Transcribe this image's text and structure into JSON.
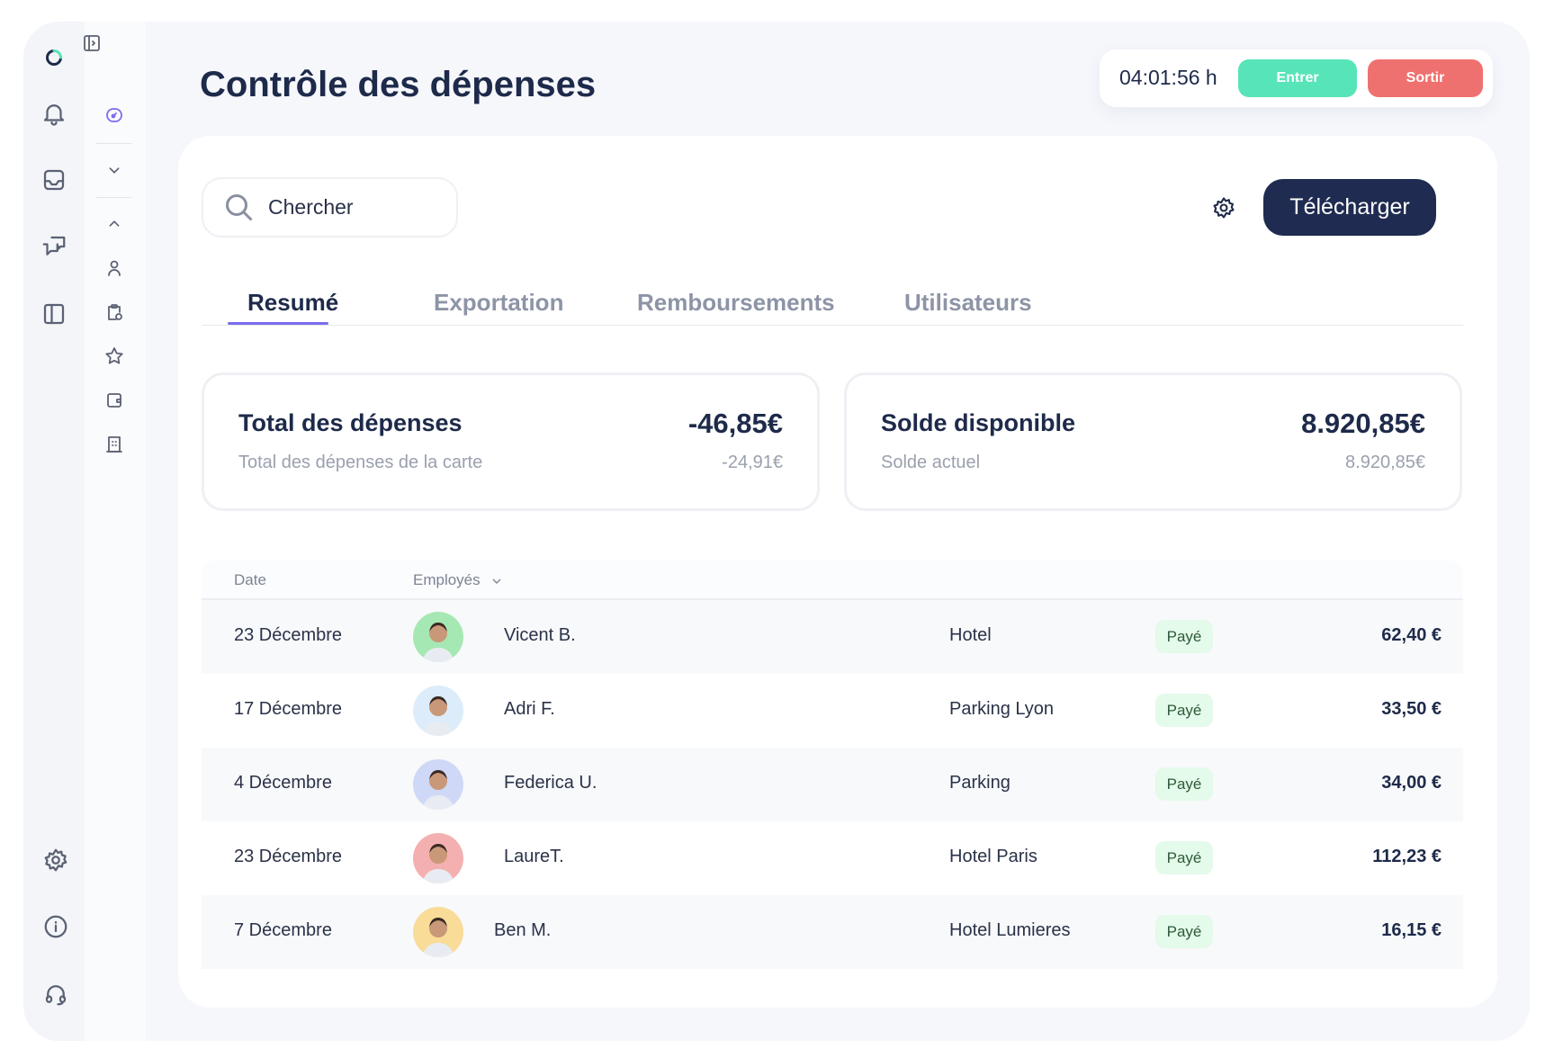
{
  "header": {
    "title": "Contrôle des dépenses",
    "timer": "04:01:56 h",
    "enter_label": "Entrer",
    "exit_label": "Sortir"
  },
  "colors": {
    "enter": "#57e4b8",
    "exit": "#ef716f",
    "primary": "#1f2b50",
    "accent": "#7b6cf0",
    "badge_bg": "#e4faea"
  },
  "rail": {
    "top_icons": [
      "logo-icon",
      "bell-icon",
      "inbox-icon",
      "chat-icon",
      "layout-icon"
    ],
    "bottom_icons": [
      "gear-icon",
      "info-icon",
      "headset-icon"
    ]
  },
  "subrail": {
    "icons": [
      "expand-panel-icon",
      "dashboard-icon",
      "chevron-down-icon",
      "chevron-up-icon",
      "user-icon",
      "clipboard-clock-icon",
      "star-icon",
      "wallet-icon",
      "building-icon"
    ]
  },
  "toolbar": {
    "search_placeholder": "Chercher",
    "download_label": "Télécharger"
  },
  "tabs": [
    {
      "label": "Resumé",
      "active": true
    },
    {
      "label": "Exportation"
    },
    {
      "label": "Remboursements"
    },
    {
      "label": "Utilisateurs"
    }
  ],
  "stats": [
    {
      "title": "Total des dépenses",
      "value": "-46,85€",
      "subtitle": "Total des dépenses de la carte",
      "subvalue": "-24,91€"
    },
    {
      "title": "Solde disponible",
      "value": "8.920,85€",
      "subtitle": "Solde actuel",
      "subvalue": "8.920,85€"
    }
  ],
  "table": {
    "headers": {
      "date": "Date",
      "employees": "Employés"
    },
    "rows": [
      {
        "date": "23 Décembre",
        "name": "Vicent B.",
        "category": "Hotel",
        "status": "Payé",
        "amount": "62,40 €",
        "avatar_color": "#a6e8b4"
      },
      {
        "date": "17 Décembre",
        "name": "Adri F.",
        "category": "Parking Lyon",
        "status": "Payé",
        "amount": "33,50 €",
        "avatar_color": "#dcecfa"
      },
      {
        "date": "4 Décembre",
        "name": "Federica U.",
        "category": "Parking",
        "status": "Payé",
        "amount": "34,00 €",
        "avatar_color": "#cfd8f6"
      },
      {
        "date": "23 Décembre",
        "name": "LaureT.",
        "category": "Hotel Paris",
        "status": "Payé",
        "amount": "112,23 €",
        "avatar_color": "#f4b0b0"
      },
      {
        "date": "7 Décembre",
        "name": "Ben M.",
        "category": "Hotel Lumieres",
        "status": "Payé",
        "amount": "16,15 €",
        "avatar_color": "#f8dc98"
      }
    ]
  }
}
